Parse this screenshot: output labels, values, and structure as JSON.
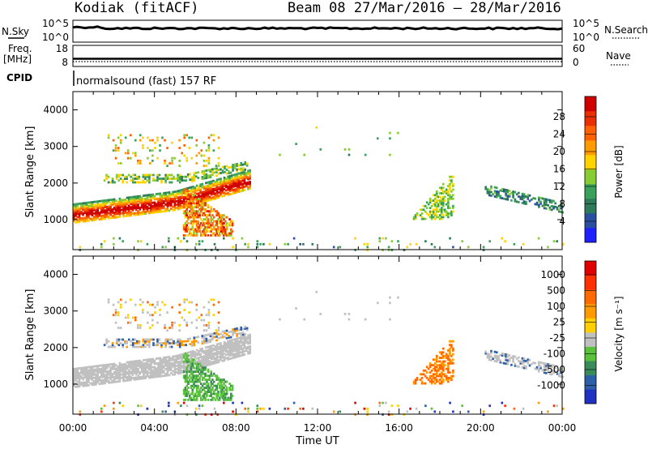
{
  "header": {
    "station": "Kodiak (fitACF)",
    "beam_date": "Beam 08  27/Mar/2016 – 28/Mar/2016"
  },
  "top_panels": {
    "nsky_label": "N.Sky",
    "nsearch_label": "N.Search",
    "nsky_ticks": [
      "10^5",
      "10^0"
    ],
    "nsky_ticks_right": [
      "10^5",
      "10^0"
    ],
    "freq_label": "Freq.",
    "freq_unit": "[MHz]",
    "freq_ticks": [
      "18",
      "8"
    ],
    "nave_label": "Nave",
    "nave_ticks": [
      "60",
      "0"
    ],
    "cpid_label": "CPID",
    "cpid_text": "normalsound (fast) 157 RF"
  },
  "colors": {
    "power_scale": [
      "#2020ff",
      "#2a4fa0",
      "#2e7a5a",
      "#3aa05a",
      "#88cc33",
      "#ffd200",
      "#ff9a00",
      "#ff6000",
      "#e83000",
      "#d00000"
    ],
    "velocity_scale": [
      "#2030c0",
      "#2d5fa8",
      "#3a8a5a",
      "#5ac23a",
      "#c0c0c0",
      "#ffd000",
      "#ff9a00",
      "#ff6a00",
      "#ff3000",
      "#e00000"
    ],
    "velocity_ground": "#c0c0c0"
  },
  "chart_data": [
    {
      "type": "heatmap",
      "title": "Power",
      "ylabel": "Slant Range [km]",
      "ylim": [
        180,
        4500
      ],
      "yticks": [
        "1000",
        "2000",
        "3000",
        "4000"
      ],
      "xticks": [
        "00:00",
        "04:00",
        "08:00",
        "12:00",
        "16:00",
        "20:00",
        "00:00"
      ],
      "colorbar": {
        "label": "Power [dB]",
        "ticks": [
          "28",
          "24",
          "20",
          "16",
          "12",
          "8",
          "4"
        ],
        "range": [
          0,
          30
        ]
      },
      "features": [
        {
          "name": "band_main",
          "t_start": 0.0,
          "t_end": 8.7,
          "range_start": 1100,
          "range_end": 1800,
          "power": 20
        },
        {
          "name": "band_upper",
          "t_start": 1.5,
          "t_end": 8.4,
          "range_start": 2000,
          "range_end": 2300,
          "power": 12
        },
        {
          "name": "patch_late",
          "t_start": 16.6,
          "t_end": 18.6,
          "range_start": 1100,
          "range_end": 2300,
          "power": 10
        },
        {
          "name": "band_evening",
          "t_start": 20.2,
          "t_end": 24.0,
          "range_start": 1200,
          "range_end": 1900,
          "power": 7
        }
      ]
    },
    {
      "type": "heatmap",
      "title": "Velocity",
      "ylabel": "Slant Range [km]",
      "xlabel": "Time UT",
      "ylim": [
        180,
        4500
      ],
      "yticks": [
        "1000",
        "2000",
        "3000",
        "4000"
      ],
      "xticks": [
        "00:00",
        "04:00",
        "08:00",
        "12:00",
        "16:00",
        "20:00",
        "00:00"
      ],
      "colorbar": {
        "label": "Velocity [m s⁻¹]",
        "ticks": [
          "1000",
          "500",
          "100",
          "25",
          "-25",
          "-100",
          "-500",
          "-1000"
        ]
      }
    }
  ]
}
